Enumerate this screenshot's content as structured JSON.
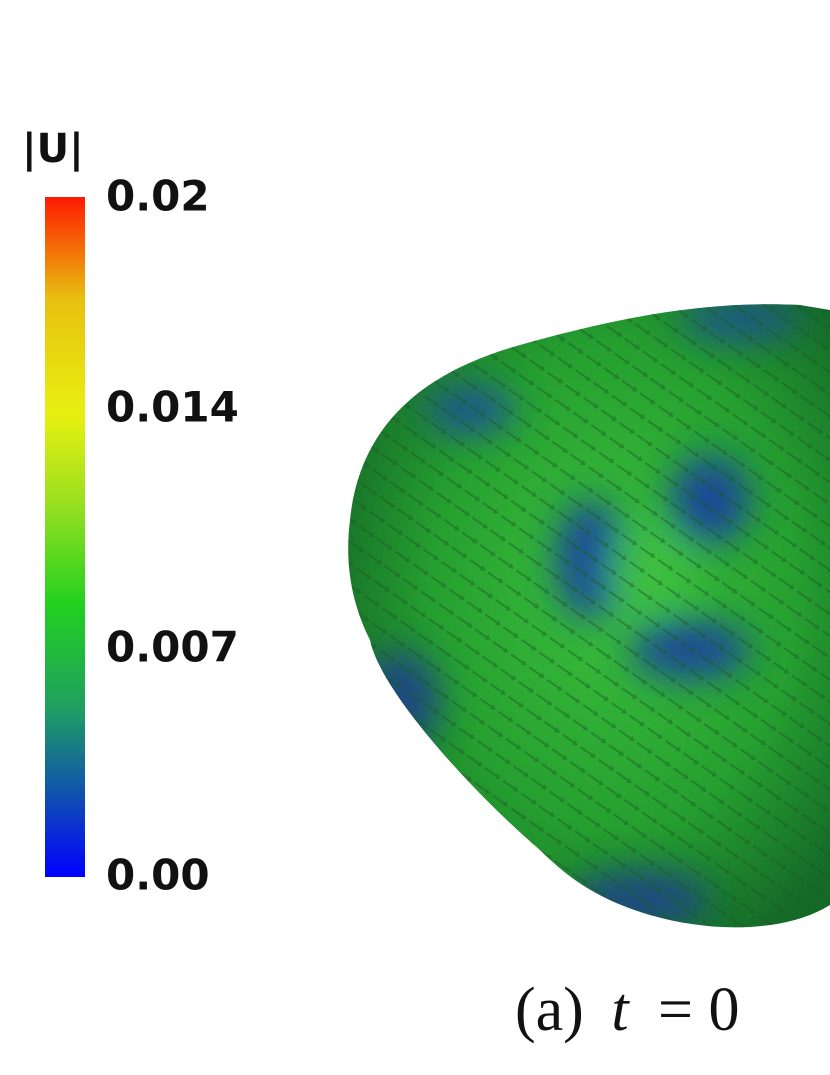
{
  "colorbar": {
    "title": "|U|",
    "ticks": [
      "0.02",
      "0.014",
      "0.007",
      "0.00"
    ]
  },
  "caption": {
    "label": "(a)",
    "variable": "t",
    "relation": "= 0"
  }
}
